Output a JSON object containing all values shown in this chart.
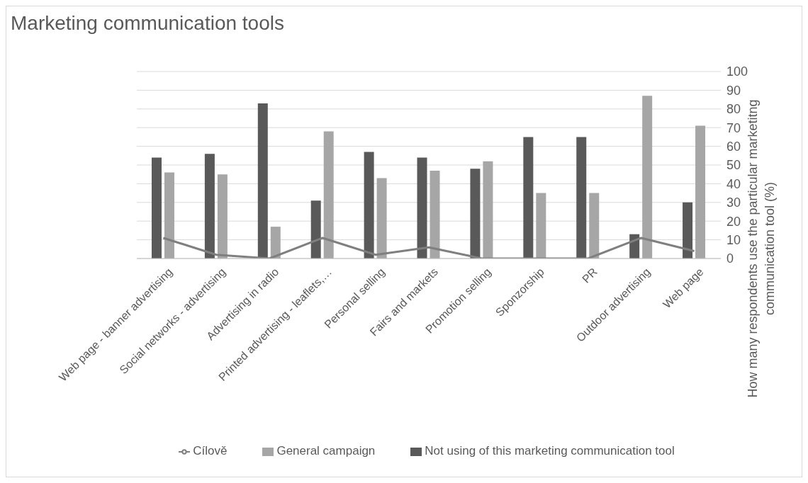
{
  "chart_data": {
    "type": "bar",
    "title": "Marketing communication tools",
    "ylabel": "How many respondents use the particular marketitng communication tool (%)",
    "categories": [
      "Web page - banner advertising",
      "Social networks - advertising",
      "Advertising in radio",
      "Printed advertising - leaflets,…",
      "Personal selling",
      "Fairs and markets",
      "Promotion selling",
      "Sponzorship",
      "PR",
      "Outdoor advertising",
      "Web page"
    ],
    "series": [
      {
        "name": "Not using of this marketing communication tool",
        "color": "#595959",
        "values": [
          54,
          56,
          83,
          31,
          57,
          54,
          48,
          65,
          65,
          13,
          30
        ]
      },
      {
        "name": "General campaign",
        "color": "#a6a6a6",
        "values": [
          46,
          45,
          17,
          68,
          43,
          47,
          52,
          35,
          35,
          87,
          71
        ]
      },
      {
        "name": "Cílově",
        "type": "line",
        "color": "#7f7f7f",
        "values": [
          11,
          2,
          0,
          11,
          2,
          6,
          0,
          0,
          0,
          11,
          4
        ]
      }
    ],
    "ylim": [
      0,
      100
    ],
    "yticks": [
      0,
      10,
      20,
      30,
      40,
      50,
      60,
      70,
      80,
      90,
      100
    ],
    "grid": "y",
    "legend": "bottom",
    "marker": "none",
    "line_style": "solid"
  }
}
